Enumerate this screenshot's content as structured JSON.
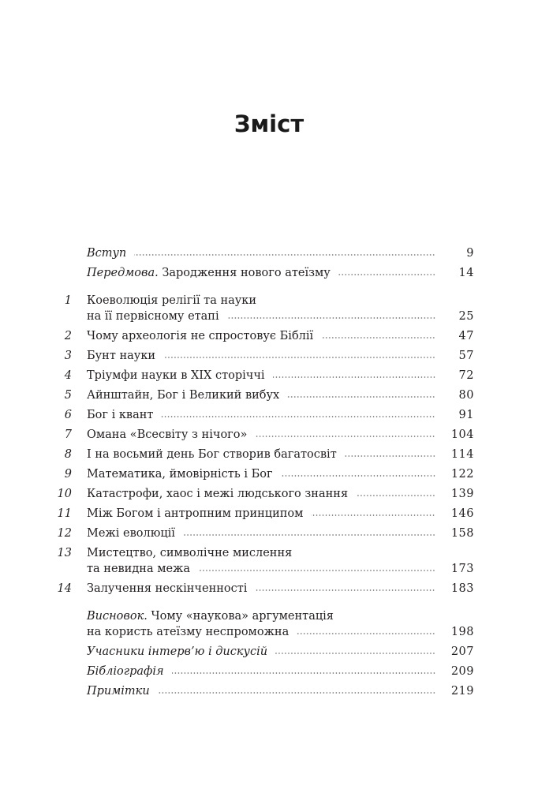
{
  "title": "Зміст",
  "groups": [
    [
      {
        "num": "",
        "italic": "Вступ",
        "lines": [
          ""
        ],
        "page": "9"
      },
      {
        "num": "",
        "italic": "Передмова.",
        "lines": [
          " Зародження нового атеїзму"
        ],
        "page": "14"
      }
    ],
    [
      {
        "num": "1",
        "italic": "",
        "lines": [
          "Коеволюція релігії та науки",
          "на її первісному етапі"
        ],
        "page": "25"
      },
      {
        "num": "2",
        "italic": "",
        "lines": [
          "Чому археологія не спростовує Біблії"
        ],
        "page": "47"
      },
      {
        "num": "3",
        "italic": "",
        "lines": [
          "Бунт науки"
        ],
        "page": "57"
      },
      {
        "num": "4",
        "italic": "",
        "lines": [
          "Тріумфи науки в XIX сторіччі"
        ],
        "page": "72"
      },
      {
        "num": "5",
        "italic": "",
        "lines": [
          "Айнштайн, Бог і Великий вибух"
        ],
        "page": "80"
      },
      {
        "num": "6",
        "italic": "",
        "lines": [
          "Бог і квант"
        ],
        "page": "91"
      },
      {
        "num": "7",
        "italic": "",
        "lines": [
          "Омана «Всесвіту з нічого»"
        ],
        "page": "104"
      },
      {
        "num": "8",
        "italic": "",
        "lines": [
          "І на восьмий день Бог створив багатосвіт"
        ],
        "page": "114"
      },
      {
        "num": "9",
        "italic": "",
        "lines": [
          "Математика, ймовірність і Бог"
        ],
        "page": "122"
      },
      {
        "num": "10",
        "italic": "",
        "lines": [
          "Катастрофи, хаос і межі людського знання"
        ],
        "page": "139"
      },
      {
        "num": "11",
        "italic": "",
        "lines": [
          "Між Богом і антропним принципом"
        ],
        "page": "146"
      },
      {
        "num": "12",
        "italic": "",
        "lines": [
          "Межі еволюції"
        ],
        "page": "158"
      },
      {
        "num": "13",
        "italic": "",
        "lines": [
          "Мистецтво, символічне мислення",
          "та невидна межа"
        ],
        "page": "173"
      },
      {
        "num": "14",
        "italic": "",
        "lines": [
          "Залучення нескінченності"
        ],
        "page": "183"
      }
    ],
    [
      {
        "num": "",
        "italic": "Висновок.",
        "lines": [
          " Чому «наукова» аргументація",
          "на користь атеїзму неспроможна"
        ],
        "page": "198"
      },
      {
        "num": "",
        "italic": "Учасники інтерв’ю і дискусій",
        "lines": [
          ""
        ],
        "page": "207"
      },
      {
        "num": "",
        "italic": "Бібліографія",
        "lines": [
          ""
        ],
        "page": "209"
      },
      {
        "num": "",
        "italic": "Примітки",
        "lines": [
          ""
        ],
        "page": "219"
      }
    ]
  ]
}
